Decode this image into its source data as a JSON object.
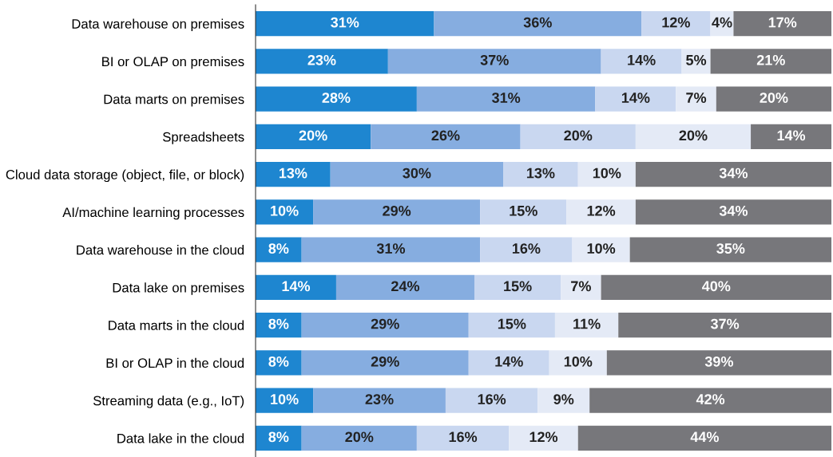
{
  "chart_data": {
    "type": "bar",
    "orientation": "horizontal",
    "stacked": true,
    "tick_labels": "y",
    "grid": false,
    "legend": false,
    "xlim": [
      0,
      100
    ],
    "categories": [
      "Data warehouse on premises",
      "BI or OLAP on premises",
      "Data marts on premises",
      "Spreadsheets",
      "Cloud data storage (object, file, or block)",
      "AI/machine learning processes",
      "Data warehouse in the cloud",
      "Data lake on premises",
      "Data marts in the cloud",
      "BI or OLAP in the cloud",
      "Streaming data (e.g., IoT)",
      "Data lake in the cloud"
    ],
    "series": [
      {
        "color": "#1e86d0",
        "values": [
          31,
          23,
          28,
          20,
          13,
          10,
          8,
          14,
          8,
          8,
          10,
          8
        ],
        "value_labels": [
          "31%",
          "23%",
          "28%",
          "20%",
          "13%",
          "10%",
          "8%",
          "14%",
          "8%",
          "8%",
          "10%",
          "8%"
        ]
      },
      {
        "color": "#86ade0",
        "values": [
          36,
          37,
          31,
          26,
          30,
          29,
          31,
          24,
          29,
          29,
          23,
          20
        ],
        "value_labels": [
          "36%",
          "37%",
          "31%",
          "26%",
          "30%",
          "29%",
          "31%",
          "24%",
          "29%",
          "29%",
          "23%",
          "20%"
        ]
      },
      {
        "color": "#c9d7f0",
        "values": [
          12,
          14,
          14,
          20,
          13,
          15,
          16,
          15,
          15,
          14,
          16,
          16
        ],
        "value_labels": [
          "12%",
          "14%",
          "14%",
          "20%",
          "13%",
          "15%",
          "16%",
          "15%",
          "15%",
          "14%",
          "16%",
          "16%"
        ]
      },
      {
        "color": "#e4eaf6",
        "values": [
          4,
          5,
          7,
          20,
          10,
          12,
          10,
          7,
          11,
          10,
          9,
          12
        ],
        "value_labels": [
          "4%",
          "5%",
          "7%",
          "20%",
          "10%",
          "12%",
          "10%",
          "7%",
          "11%",
          "10%",
          "9%",
          "12%"
        ]
      },
      {
        "color": "#77777b",
        "values": [
          17,
          21,
          20,
          14,
          34,
          34,
          35,
          40,
          37,
          39,
          42,
          44
        ],
        "value_labels": [
          "17%",
          "21%",
          "20%",
          "14%",
          "34%",
          "34%",
          "35%",
          "40%",
          "37%",
          "39%",
          "42%",
          "44%"
        ]
      }
    ]
  }
}
